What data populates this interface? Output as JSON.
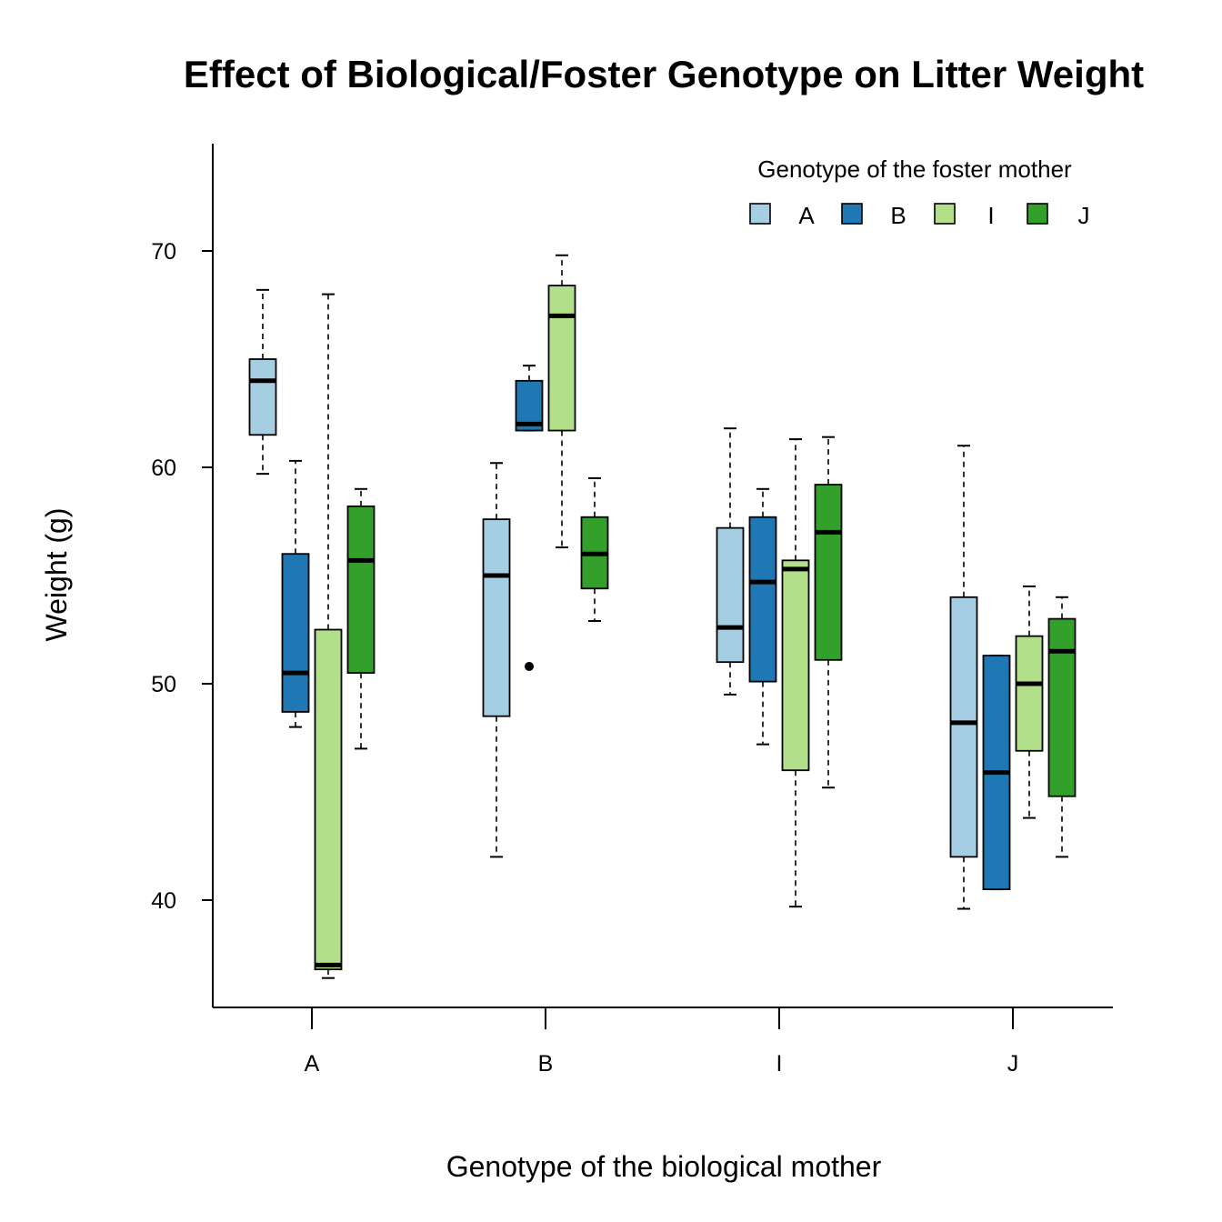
{
  "chart_data": {
    "type": "boxplot",
    "title": "Effect of Biological/Foster Genotype on Litter Weight",
    "xlabel": "Genotype of the biological mother",
    "ylabel": "Weight (g)",
    "ylim": [
      35,
      75
    ],
    "yticks": [
      40,
      50,
      60,
      70
    ],
    "categories": [
      "A",
      "B",
      "I",
      "J"
    ],
    "legend": {
      "title": "Genotype of the foster mother",
      "position": "top-right",
      "entries": [
        "A",
        "B",
        "I",
        "J"
      ]
    },
    "colors": {
      "A": "#a6cee3",
      "B": "#1f78b4",
      "I": "#b2df8a",
      "J": "#33a02c"
    },
    "series": [
      {
        "name": "A",
        "boxes": [
          {
            "category": "A",
            "whisker_low": 59.7,
            "q1": 61.5,
            "median": 64.0,
            "q3": 65.0,
            "whisker_high": 68.2,
            "outliers": []
          },
          {
            "category": "B",
            "whisker_low": 42.0,
            "q1": 48.5,
            "median": 55.0,
            "q3": 57.6,
            "whisker_high": 60.2,
            "outliers": []
          },
          {
            "category": "I",
            "whisker_low": 49.5,
            "q1": 51.0,
            "median": 52.6,
            "q3": 57.2,
            "whisker_high": 61.8,
            "outliers": []
          },
          {
            "category": "J",
            "whisker_low": 39.6,
            "q1": 42.0,
            "median": 48.2,
            "q3": 54.0,
            "whisker_high": 61.0,
            "outliers": []
          }
        ]
      },
      {
        "name": "B",
        "boxes": [
          {
            "category": "A",
            "whisker_low": 48.0,
            "q1": 48.7,
            "median": 50.5,
            "q3": 56.0,
            "whisker_high": 60.3,
            "outliers": []
          },
          {
            "category": "B",
            "whisker_low": 61.7,
            "q1": 61.7,
            "median": 62.0,
            "q3": 64.0,
            "whisker_high": 64.7,
            "outliers": [
              50.8
            ]
          },
          {
            "category": "I",
            "whisker_low": 47.2,
            "q1": 50.1,
            "median": 54.7,
            "q3": 57.7,
            "whisker_high": 59.0,
            "outliers": []
          },
          {
            "category": "J",
            "whisker_low": 40.5,
            "q1": 40.5,
            "median": 45.9,
            "q3": 51.3,
            "whisker_high": 51.3,
            "outliers": []
          }
        ]
      },
      {
        "name": "I",
        "boxes": [
          {
            "category": "A",
            "whisker_low": 36.4,
            "q1": 36.8,
            "median": 37.0,
            "q3": 52.5,
            "whisker_high": 68.0,
            "outliers": []
          },
          {
            "category": "B",
            "whisker_low": 56.3,
            "q1": 61.7,
            "median": 67.0,
            "q3": 68.4,
            "whisker_high": 69.8,
            "outliers": []
          },
          {
            "category": "I",
            "whisker_low": 39.7,
            "q1": 46.0,
            "median": 55.3,
            "q3": 55.7,
            "whisker_high": 61.3,
            "outliers": []
          },
          {
            "category": "J",
            "whisker_low": 43.8,
            "q1": 46.9,
            "median": 50.0,
            "q3": 52.2,
            "whisker_high": 54.5,
            "outliers": []
          }
        ]
      },
      {
        "name": "J",
        "boxes": [
          {
            "category": "A",
            "whisker_low": 47.0,
            "q1": 50.5,
            "median": 55.7,
            "q3": 58.2,
            "whisker_high": 59.0,
            "outliers": []
          },
          {
            "category": "B",
            "whisker_low": 52.9,
            "q1": 54.4,
            "median": 56.0,
            "q3": 57.7,
            "whisker_high": 59.5,
            "outliers": []
          },
          {
            "category": "I",
            "whisker_low": 45.2,
            "q1": 51.1,
            "median": 57.0,
            "q3": 59.2,
            "whisker_high": 61.4,
            "outliers": []
          },
          {
            "category": "J",
            "whisker_low": 42.0,
            "q1": 44.8,
            "median": 51.5,
            "q3": 53.0,
            "whisker_high": 54.0,
            "outliers": []
          }
        ]
      }
    ]
  }
}
